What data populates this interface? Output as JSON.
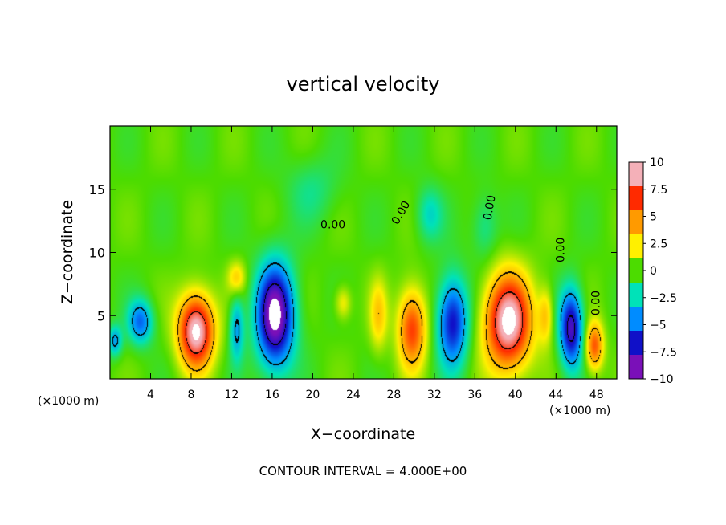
{
  "chart_data": {
    "type": "heatmap",
    "title": "vertical velocity",
    "xlabel": "X−coordinate",
    "ylabel": "Z−coordinate",
    "x_unit_left": "(×1000 m)",
    "x_unit_right": "(×1000 m)",
    "xlim": [
      0,
      50
    ],
    "ylim": [
      0,
      20
    ],
    "x_ticks": [
      4,
      8,
      12,
      16,
      20,
      24,
      28,
      32,
      36,
      40,
      44,
      48
    ],
    "y_ticks": [
      5,
      10,
      15
    ],
    "footer": "CONTOUR INTERVAL = 4.000E+00",
    "contour_labels": [
      "0.00",
      "0.00",
      "0.00",
      "0.00",
      "0.00"
    ],
    "colorbar": {
      "min": -10,
      "max": 10,
      "tick_values": [
        10,
        7.5,
        5,
        2.5,
        0,
        -2.5,
        -5,
        -7.5,
        -10
      ],
      "tick_labels": [
        "10",
        "7.5",
        "5",
        "2.5",
        "0",
        "−2.5",
        "−5",
        "−7.5",
        "−10"
      ],
      "colors": [
        "#f4b0b8",
        "#ff2a00",
        "#ff9a00",
        "#fff000",
        "#4cdc00",
        "#00e2b8",
        "#008cff",
        "#1010c8",
        "#7a10b8"
      ]
    },
    "features": [
      {
        "x": 8.5,
        "z": 3.8,
        "peak": 10,
        "rx": 2.0,
        "rz": 3.3
      },
      {
        "x": 16.3,
        "z": 5.0,
        "peak": -10,
        "rx": 2.1,
        "rz": 4.6
      },
      {
        "x": 29.8,
        "z": 4.0,
        "peak": 6.5,
        "rx": 1.6,
        "rz": 3.6
      },
      {
        "x": 33.8,
        "z": 4.5,
        "peak": -7,
        "rx": 1.7,
        "rz": 4.0
      },
      {
        "x": 39.3,
        "z": 4.5,
        "peak": 10,
        "rx": 2.6,
        "rz": 4.3
      },
      {
        "x": 45.5,
        "z": 4.0,
        "peak": -8,
        "rx": 1.3,
        "rz": 3.5
      },
      {
        "x": 47.8,
        "z": 2.6,
        "peak": 6,
        "rx": 1.0,
        "rz": 2.2
      },
      {
        "x": 3.0,
        "z": 4.5,
        "peak": -5,
        "rx": 1.4,
        "rz": 2.0
      },
      {
        "x": 0.5,
        "z": 3.0,
        "peak": -4,
        "rx": 0.8,
        "rz": 1.4
      },
      {
        "x": 12.5,
        "z": 4.0,
        "peak": -4,
        "rx": 0.8,
        "rz": 3.0
      },
      {
        "x": 26.5,
        "z": 5.0,
        "peak": 3,
        "rx": 1.0,
        "rz": 3.2
      },
      {
        "x": 23.0,
        "z": 6.0,
        "peak": 2.5,
        "rx": 0.9,
        "rz": 1.5
      },
      {
        "x": 12.5,
        "z": 8.0,
        "peak": 3,
        "rx": 1.0,
        "rz": 1.5
      },
      {
        "x": 37.0,
        "z": 12.0,
        "peak": -2,
        "rx": 1.5,
        "rz": 3.0
      },
      {
        "x": 20.0,
        "z": 15.0,
        "peak": -1.5,
        "rx": 3.0,
        "rz": 3.0
      },
      {
        "x": 31.5,
        "z": 13.0,
        "peak": -2.5,
        "rx": 1.5,
        "rz": 2.5
      },
      {
        "x": 43.0,
        "z": 5.0,
        "peak": 3,
        "rx": 0.8,
        "rz": 2.5
      }
    ]
  }
}
